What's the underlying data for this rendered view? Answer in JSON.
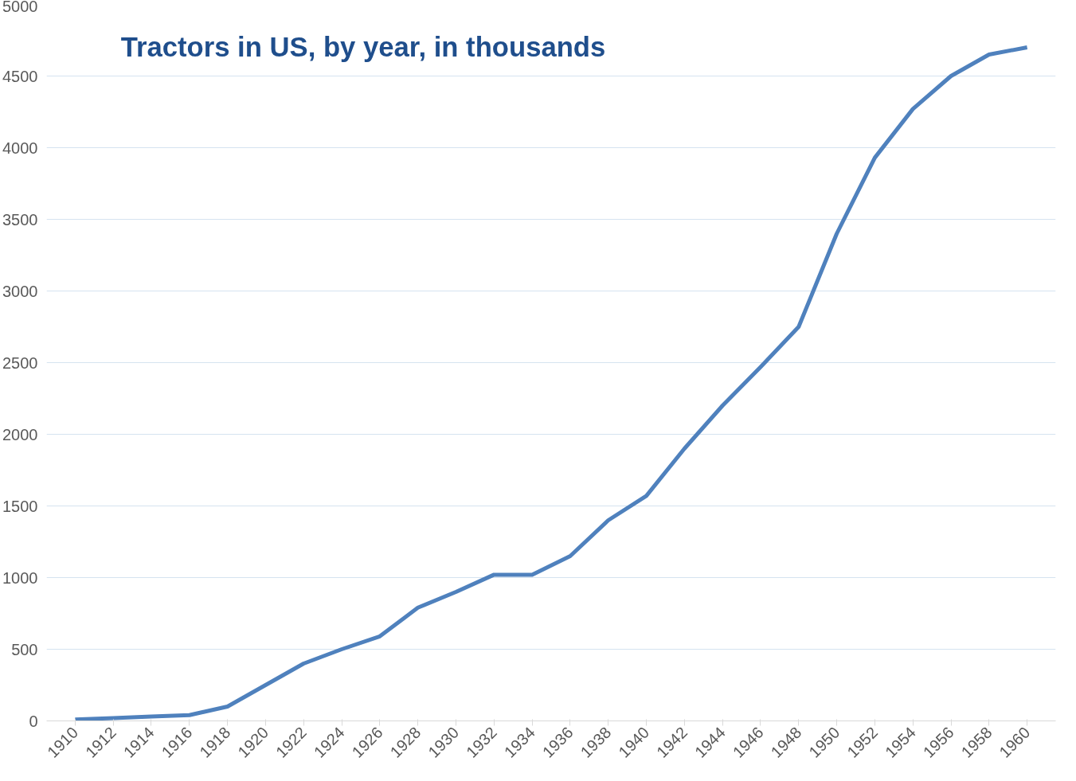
{
  "chart_data": {
    "type": "line",
    "title": "Tractors in US, by year, in thousands",
    "categories": [
      "1910",
      "1912",
      "1914",
      "1916",
      "1918",
      "1920",
      "1922",
      "1924",
      "1926",
      "1928",
      "1930",
      "1932",
      "1934",
      "1936",
      "1938",
      "1940",
      "1942",
      "1944",
      "1946",
      "1948",
      "1950",
      "1952",
      "1954",
      "1956",
      "1958",
      "1960"
    ],
    "series": [
      {
        "color": "#4f81bd",
        "values": [
          10,
          20,
          30,
          40,
          100,
          250,
          400,
          500,
          590,
          790,
          900,
          1020,
          1020,
          1150,
          1400,
          1570,
          1900,
          2200,
          2470,
          2750,
          3400,
          3930,
          4270,
          4500,
          4650,
          4700
        ]
      }
    ],
    "ylim": [
      0,
      5000
    ],
    "yticks": [
      0,
      500,
      1000,
      1500,
      2000,
      2500,
      3000,
      3500,
      4000,
      4500,
      5000
    ],
    "grid": "y",
    "marker": "none",
    "line_style": "solid"
  }
}
